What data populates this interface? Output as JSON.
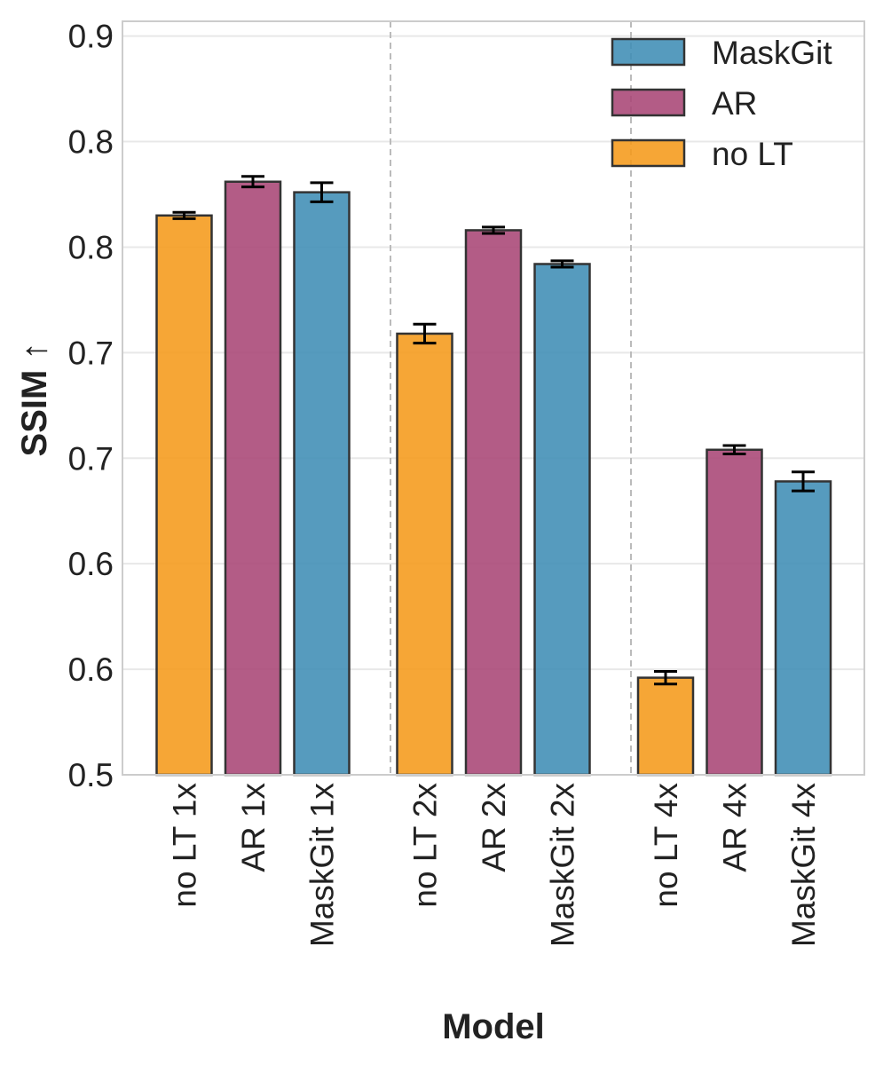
{
  "chart_data": {
    "type": "bar",
    "title": "",
    "xlabel": "Model",
    "ylabel": "SSIM ↑",
    "ylim": [
      0.5,
      0.857
    ],
    "yticks": [
      0.5,
      0.55,
      0.6,
      0.65,
      0.7,
      0.75,
      0.8,
      0.85
    ],
    "ytick_labels": [
      "0.5",
      "0.6",
      "0.6",
      "0.7",
      "0.7",
      "0.8",
      "0.8",
      "0.9"
    ],
    "grid": true,
    "legend_position": "top-right",
    "group_separators_after": [
      2,
      5
    ],
    "categories": [
      "no LT 1x",
      "AR 1x",
      "MaskGit 1x",
      "no LT 2x",
      "AR 2x",
      "MaskGit 2x",
      "no LT 4x",
      "AR 4x",
      "MaskGit 4x"
    ],
    "series_index": [
      2,
      1,
      0,
      2,
      1,
      0,
      2,
      1,
      0
    ],
    "values": [
      0.765,
      0.781,
      0.776,
      0.709,
      0.758,
      0.742,
      0.546,
      0.654,
      0.639
    ],
    "errors": [
      0.0015,
      0.0025,
      0.0045,
      0.0045,
      0.0015,
      0.0015,
      0.003,
      0.002,
      0.0045
    ],
    "series": [
      {
        "name": "MaskGit",
        "color": "#3f8db5"
      },
      {
        "name": "AR",
        "color": "#a84575"
      },
      {
        "name": "no LT",
        "color": "#f59a1a"
      }
    ]
  }
}
